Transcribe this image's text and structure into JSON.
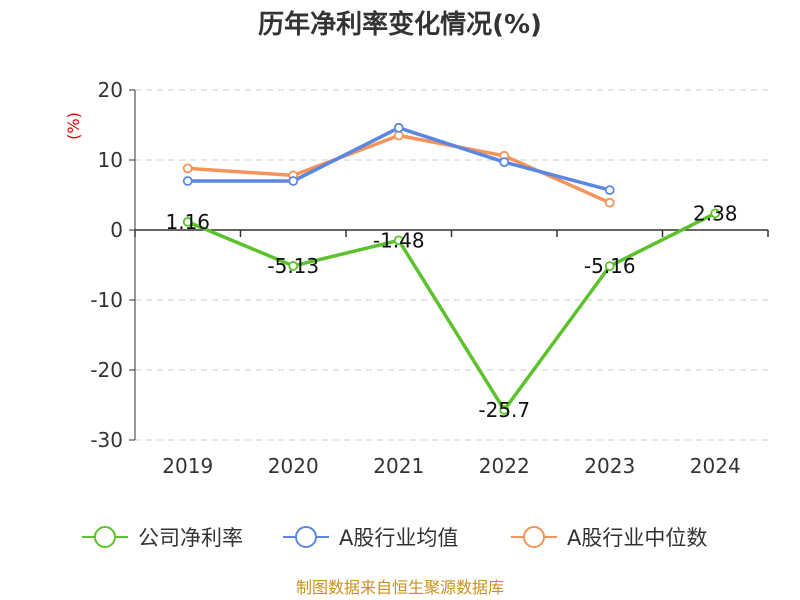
{
  "chart_data": {
    "type": "line",
    "title": "历年净利率变化情况(%)",
    "ylabel_unit": "(%)",
    "categories": [
      "2019",
      "2020",
      "2021",
      "2022",
      "2023",
      "2024"
    ],
    "ylim": [
      -30,
      20
    ],
    "yticks": [
      "20",
      "10",
      "0",
      "-10",
      "-20",
      "-30"
    ],
    "grid": "horizontal-dashed",
    "legend_position": "bottom",
    "series": [
      {
        "name": "公司净利率",
        "color": "#5cc22c",
        "values": [
          1.16,
          -5.13,
          -1.48,
          -25.7,
          -5.16,
          2.38
        ],
        "labels": [
          "1.16",
          "-5.13",
          "-1.48",
          "-25.7",
          "-5.16",
          "2.38"
        ]
      },
      {
        "name": "A股行业均值",
        "color": "#5b87e0",
        "values": [
          7.0,
          7.0,
          14.6,
          9.7,
          5.7,
          null
        ]
      },
      {
        "name": "A股行业中位数",
        "color": "#f4935a",
        "values": [
          8.8,
          7.8,
          13.5,
          10.6,
          3.9,
          null
        ]
      }
    ],
    "source": "制图数据来自恒生聚源数据库"
  }
}
